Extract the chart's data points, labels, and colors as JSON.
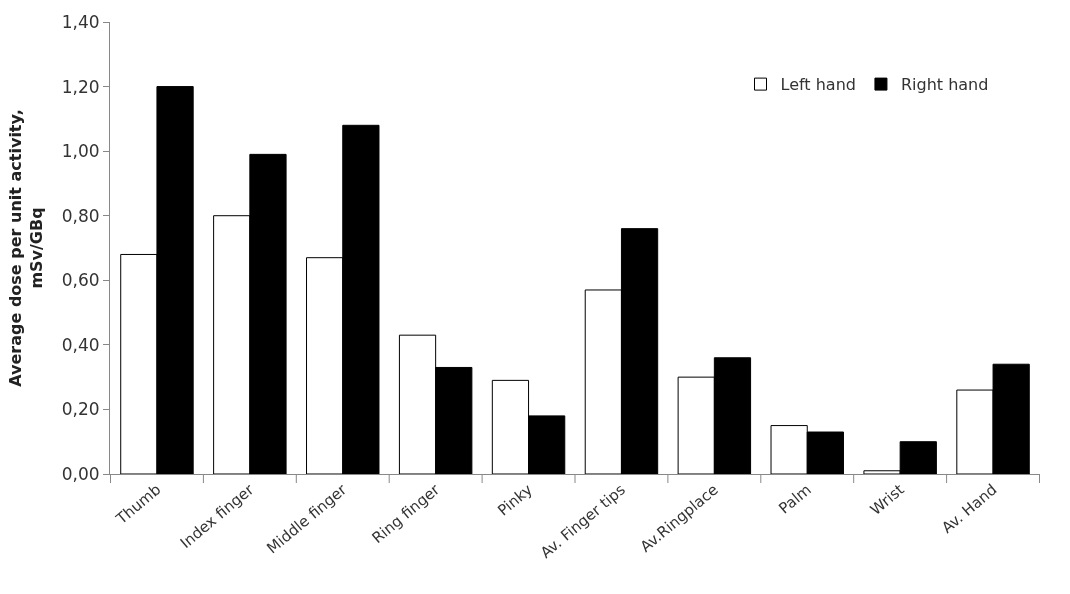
{
  "chart_data": {
    "type": "bar",
    "ylabel": "Average dose per unit activity, mSv/GBq",
    "categories": [
      "Thumb",
      "Index finger",
      "Middle finger",
      "Ring finger",
      "Pinky",
      "Av. Finger tips",
      "Av.Ringplace",
      "Palm",
      "Wrist",
      "Av. Hand"
    ],
    "series": [
      {
        "name": "Left hand",
        "color": "#ffffff",
        "values": [
          0.68,
          0.8,
          0.67,
          0.43,
          0.29,
          0.57,
          0.3,
          0.15,
          0.01,
          0.26
        ]
      },
      {
        "name": "Right hand",
        "color": "#000000",
        "values": [
          1.2,
          0.99,
          1.08,
          0.33,
          0.18,
          0.76,
          0.36,
          0.13,
          0.1,
          0.34
        ]
      }
    ],
    "ylim": [
      0,
      1.4
    ],
    "yticks": [
      {
        "value": 0,
        "label": "0,00"
      },
      {
        "value": 0.2,
        "label": "0,20"
      },
      {
        "value": 0.4,
        "label": "0,40"
      },
      {
        "value": 0.6,
        "label": "0,60"
      },
      {
        "value": 0.8,
        "label": "0,80"
      },
      {
        "value": 1.0,
        "label": "1,00"
      },
      {
        "value": 1.2,
        "label": "1,20"
      },
      {
        "value": 1.4,
        "label": "1,40"
      }
    ],
    "legend": "top right"
  }
}
